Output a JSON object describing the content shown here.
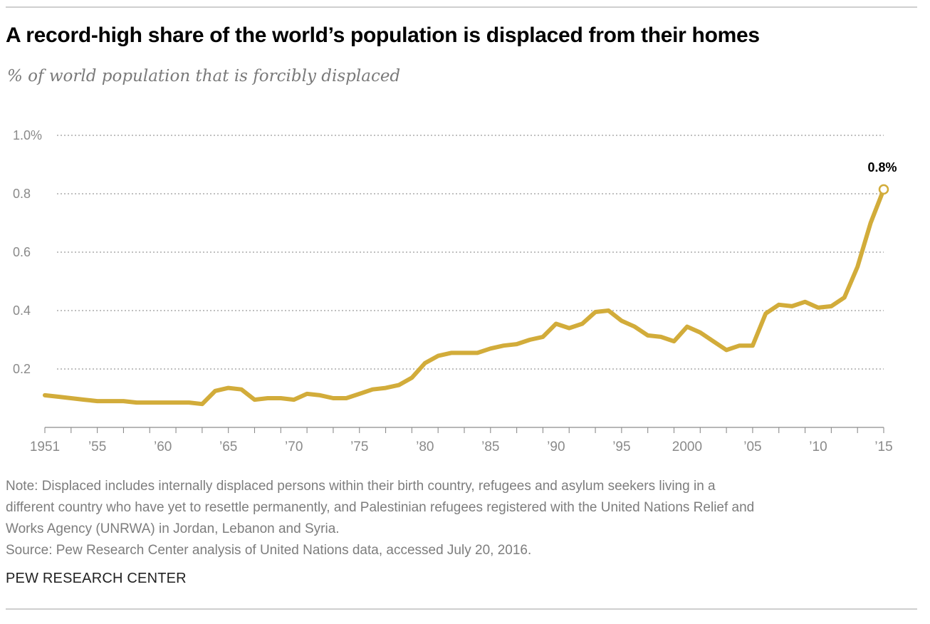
{
  "header": {
    "title": "A record-high share of the world’s population is displaced from their homes",
    "subtitle": "% of world population that is forcibly displaced"
  },
  "chart_data": {
    "type": "line",
    "title": "A record-high share of the world’s population is displaced from their homes",
    "subtitle": "% of world population that is forcibly displaced",
    "xlabel": "",
    "ylabel": "",
    "xlim": [
      1951,
      2015
    ],
    "ylim": [
      0,
      1.0
    ],
    "grid": true,
    "y_ticks": [
      {
        "value": 1.0,
        "label": "1.0%"
      },
      {
        "value": 0.8,
        "label": "0.8"
      },
      {
        "value": 0.6,
        "label": "0.6"
      },
      {
        "value": 0.4,
        "label": "0.4"
      },
      {
        "value": 0.2,
        "label": "0.2"
      }
    ],
    "x_ticks": [
      {
        "value": 1951,
        "label": "1951"
      },
      {
        "value": 1955,
        "label": "’55"
      },
      {
        "value": 1960,
        "label": "’60"
      },
      {
        "value": 1965,
        "label": "’65"
      },
      {
        "value": 1970,
        "label": "’70"
      },
      {
        "value": 1975,
        "label": "’75"
      },
      {
        "value": 1980,
        "label": "’80"
      },
      {
        "value": 1985,
        "label": "’85"
      },
      {
        "value": 1990,
        "label": "’90"
      },
      {
        "value": 1995,
        "label": "’95"
      },
      {
        "value": 2000,
        "label": "2000"
      },
      {
        "value": 2005,
        "label": "’05"
      },
      {
        "value": 2010,
        "label": "’10"
      },
      {
        "value": 2015,
        "label": "’15"
      }
    ],
    "x_minor_ticks": [
      1951,
      1953,
      1955,
      1957,
      1959,
      1961,
      1963,
      1965,
      1967,
      1969,
      1971,
      1973,
      1975,
      1977,
      1979,
      1981,
      1983,
      1985,
      1987,
      1989,
      1991,
      1993,
      1995,
      1997,
      1999,
      2001,
      2003,
      2005,
      2007,
      2009,
      2011,
      2013,
      2015
    ],
    "series": [
      {
        "name": "% of world population that is forcibly displaced",
        "color": "#d2ac3a",
        "x": [
          1951,
          1952,
          1953,
          1954,
          1955,
          1956,
          1957,
          1958,
          1959,
          1960,
          1961,
          1962,
          1963,
          1964,
          1965,
          1966,
          1967,
          1968,
          1969,
          1970,
          1971,
          1972,
          1973,
          1974,
          1975,
          1976,
          1977,
          1978,
          1979,
          1980,
          1981,
          1982,
          1983,
          1984,
          1985,
          1986,
          1987,
          1988,
          1989,
          1990,
          1991,
          1992,
          1993,
          1994,
          1995,
          1996,
          1997,
          1998,
          1999,
          2000,
          2001,
          2002,
          2003,
          2004,
          2005,
          2006,
          2007,
          2008,
          2009,
          2010,
          2011,
          2012,
          2013,
          2014,
          2015
        ],
        "values": [
          0.11,
          0.105,
          0.1,
          0.095,
          0.09,
          0.09,
          0.09,
          0.085,
          0.085,
          0.085,
          0.085,
          0.085,
          0.08,
          0.125,
          0.135,
          0.13,
          0.095,
          0.1,
          0.1,
          0.095,
          0.115,
          0.11,
          0.1,
          0.1,
          0.115,
          0.13,
          0.135,
          0.145,
          0.17,
          0.22,
          0.245,
          0.255,
          0.255,
          0.255,
          0.27,
          0.28,
          0.285,
          0.3,
          0.31,
          0.355,
          0.34,
          0.355,
          0.395,
          0.4,
          0.365,
          0.345,
          0.315,
          0.31,
          0.295,
          0.345,
          0.325,
          0.295,
          0.265,
          0.28,
          0.28,
          0.39,
          0.42,
          0.415,
          0.43,
          0.41,
          0.415,
          0.445,
          0.55,
          0.7,
          0.815
        ]
      }
    ],
    "annotations": [
      {
        "x": 2015,
        "y": 0.815,
        "label": "0.8%"
      }
    ]
  },
  "footer": {
    "note_lines": [
      "Note: Displaced includes internally displaced persons within their birth country, refugees and asylum seekers living in a",
      "different country who have yet to resettle permanently, and Palestinian refugees registered with the United Nations Relief and",
      "Works Agency (UNRWA) in Jordan, Lebanon and Syria."
    ],
    "source": "Source: Pew Research Center analysis of United Nations data, accessed July 20, 2016.",
    "brand": "PEW RESEARCH CENTER"
  },
  "colors": {
    "line": "#d2ac3a",
    "grid": "#9a9a9a",
    "axis_text": "#8a8a8a",
    "rule": "#cfcfcf"
  }
}
